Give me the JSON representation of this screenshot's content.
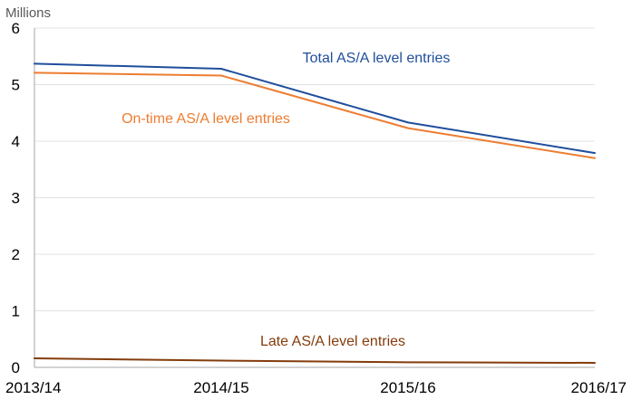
{
  "chart_data": {
    "type": "line",
    "title": "",
    "xlabel": "",
    "ylabel": "Millions",
    "ylim": [
      0,
      6
    ],
    "yticks": [
      "0",
      "1",
      "2",
      "3",
      "4",
      "5",
      "6"
    ],
    "categories": [
      "2013/14",
      "2014/15",
      "2015/16",
      "2016/17"
    ],
    "grid": true,
    "legend": "inline labels",
    "series": [
      {
        "name": "Total AS/A level entries",
        "color": "#1F4E9C",
        "values": [
          5.37,
          5.28,
          4.33,
          3.79
        ]
      },
      {
        "name": "On-time AS/A level entries",
        "color": "#ED7D31",
        "values": [
          5.21,
          5.16,
          4.23,
          3.7
        ]
      },
      {
        "name": "Late AS/A level entries",
        "color": "#843C0C",
        "values": [
          0.16,
          0.12,
          0.09,
          0.08
        ]
      }
    ]
  }
}
